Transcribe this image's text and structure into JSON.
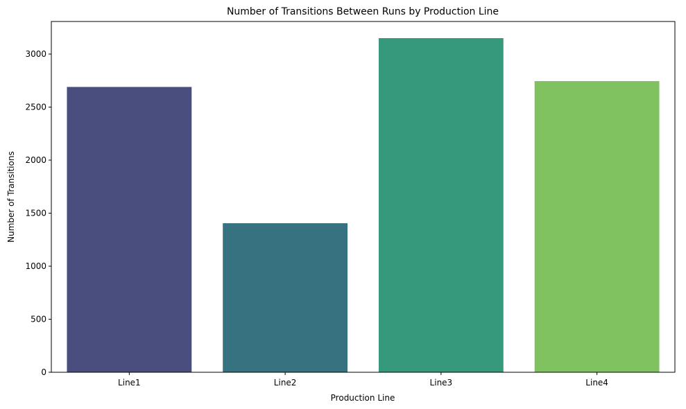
{
  "chart_data": {
    "type": "bar",
    "title": "Number of Transitions Between Runs by Production Line",
    "xlabel": "Production Line",
    "ylabel": "Number of Transitions",
    "categories": [
      "Line1",
      "Line2",
      "Line3",
      "Line4"
    ],
    "values": [
      2690,
      1405,
      3150,
      2745
    ],
    "colors": [
      "#4a4e7e",
      "#377281",
      "#36997c",
      "#80c260"
    ],
    "ylim": [
      0,
      3307
    ],
    "yticks": [
      0,
      500,
      1000,
      1500,
      2000,
      2500,
      3000
    ],
    "grid": false,
    "legend": "none"
  }
}
